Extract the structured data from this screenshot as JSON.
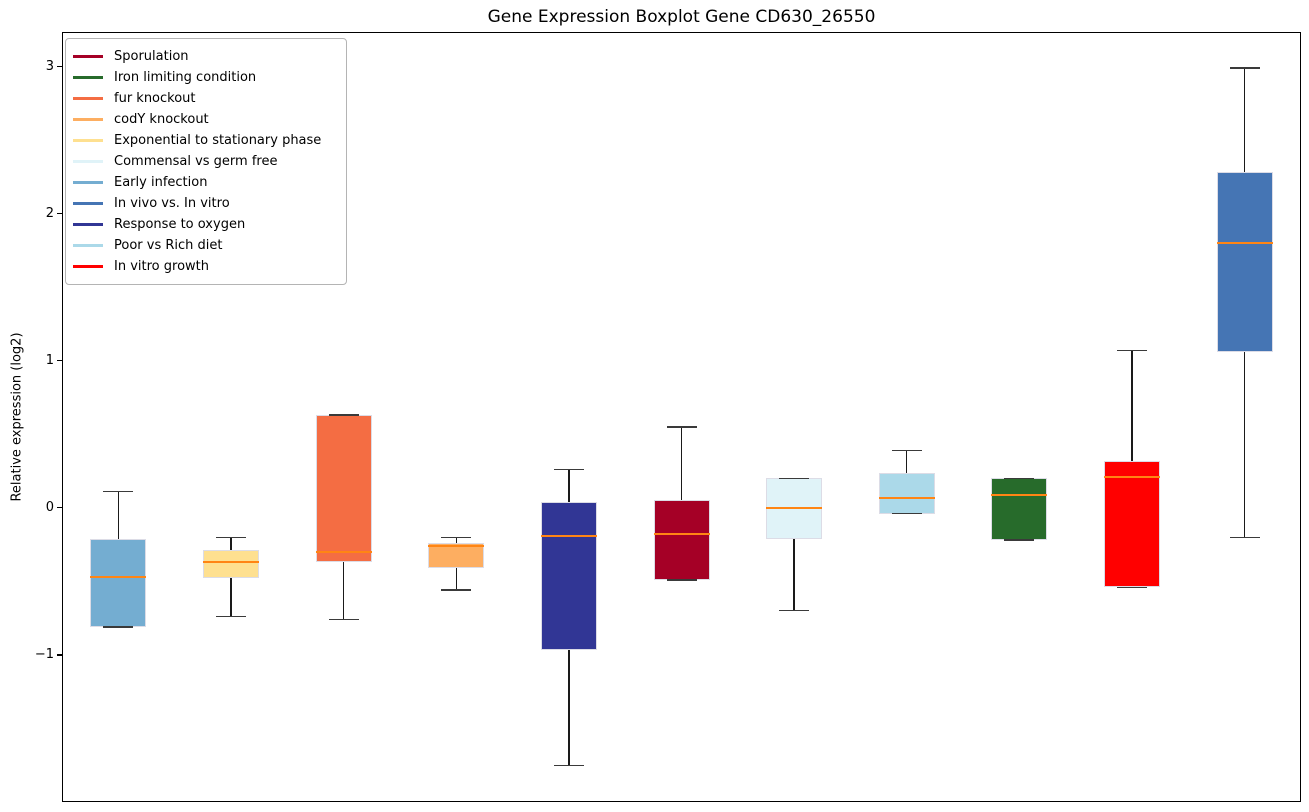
{
  "figure": {
    "title": "Gene Expression Boxplot Gene CD630_26550",
    "ylabel": "Relative expression (log2)",
    "background_color": "#ffffff",
    "spine_color": "#000000",
    "median_color": "#ff8514",
    "whisker_color": "#1a1a1a"
  },
  "axis": {
    "yticks": [
      {
        "value": 3,
        "label": "3"
      },
      {
        "value": 2,
        "label": "2"
      },
      {
        "value": 1,
        "label": "1"
      },
      {
        "value": 0,
        "label": "0"
      },
      {
        "value": -1,
        "label": "−1"
      }
    ]
  },
  "legend": {
    "items": [
      {
        "label": "Sporulation",
        "color": "#a50026"
      },
      {
        "label": "Iron limiting condition",
        "color": "#276b2b"
      },
      {
        "label": "fur knockout",
        "color": "#f46d43"
      },
      {
        "label": "codY knockout",
        "color": "#fdae61"
      },
      {
        "label": "Exponential to stationary phase",
        "color": "#fee090"
      },
      {
        "label": "Commensal vs germ free",
        "color": "#e0f3f8"
      },
      {
        "label": "Early infection",
        "color": "#74add1"
      },
      {
        "label": "In vivo vs. In vitro",
        "color": "#4575b4"
      },
      {
        "label": "Response to oxygen",
        "color": "#313695"
      },
      {
        "label": "Poor vs Rich diet",
        "color": "#abd9e9"
      },
      {
        "label": "In vitro growth",
        "color": "#ff0000"
      }
    ]
  },
  "chart_data": {
    "type": "boxplot",
    "title": "Gene Expression Boxplot Gene CD630_26550",
    "xlabel": "",
    "ylabel": "Relative expression (log2)",
    "ylim": [
      -2.0,
      3.235
    ],
    "xlim": [
      0.5,
      11.5
    ],
    "grid": false,
    "legend_position": "upper left",
    "series": [
      {
        "name": "Early infection",
        "color": "#74add1",
        "whisker_low": -0.81,
        "q1": -0.81,
        "median": -0.47,
        "q3": -0.21,
        "whisker_high": 0.11
      },
      {
        "name": "Exponential to stationary phase",
        "color": "#fee090",
        "whisker_low": -0.74,
        "q1": -0.48,
        "median": -0.37,
        "q3": -0.29,
        "whisker_high": -0.2
      },
      {
        "name": "fur knockout",
        "color": "#f46d43",
        "whisker_low": -0.76,
        "q1": -0.37,
        "median": -0.3,
        "q3": 0.63,
        "whisker_high": 0.63
      },
      {
        "name": "codY knockout",
        "color": "#fdae61",
        "whisker_low": -0.56,
        "q1": -0.41,
        "median": -0.26,
        "q3": -0.24,
        "whisker_high": -0.2
      },
      {
        "name": "Response to oxygen",
        "color": "#313695",
        "whisker_low": -1.75,
        "q1": -0.97,
        "median": -0.19,
        "q3": 0.04,
        "whisker_high": 0.26
      },
      {
        "name": "Sporulation",
        "color": "#a50026",
        "whisker_low": -0.49,
        "q1": -0.49,
        "median": -0.18,
        "q3": 0.05,
        "whisker_high": 0.55
      },
      {
        "name": "Commensal vs germ free",
        "color": "#e0f3f8",
        "whisker_low": -0.7,
        "q1": -0.21,
        "median": 0.0,
        "q3": 0.2,
        "whisker_high": 0.2
      },
      {
        "name": "Poor vs Rich diet",
        "color": "#abd9e9",
        "whisker_low": -0.04,
        "q1": -0.04,
        "median": 0.07,
        "q3": 0.24,
        "whisker_high": 0.39
      },
      {
        "name": "Iron limiting condition",
        "color": "#276b2b",
        "whisker_low": -0.22,
        "q1": -0.22,
        "median": 0.09,
        "q3": 0.2,
        "whisker_high": 0.2
      },
      {
        "name": "In vitro growth",
        "color": "#ff0000",
        "whisker_low": -0.54,
        "q1": -0.54,
        "median": 0.21,
        "q3": 0.32,
        "whisker_high": 1.07
      },
      {
        "name": "In vivo vs. In vitro",
        "color": "#4575b4",
        "whisker_low": -0.2,
        "q1": 1.06,
        "median": 1.8,
        "q3": 2.28,
        "whisker_high": 2.99
      }
    ]
  }
}
